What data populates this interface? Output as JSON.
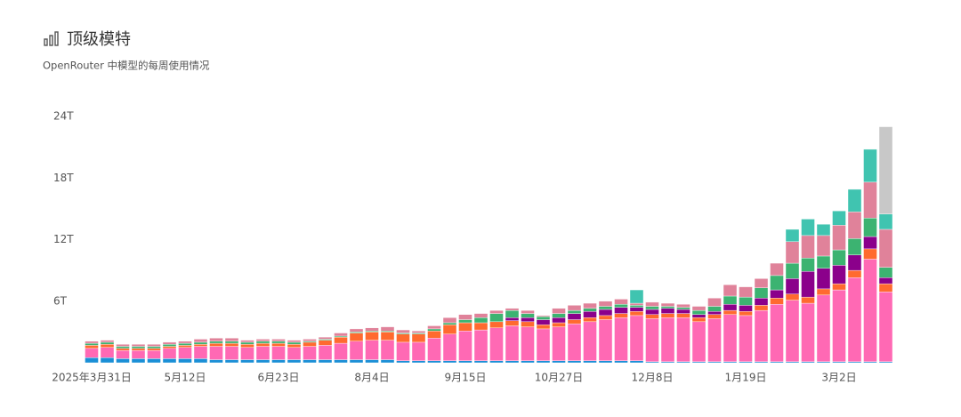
{
  "chart_data": {
    "type": "bar",
    "stacked": true,
    "title": "顶级模特",
    "subtitle": "OpenRouter 中模型的每周使用情况",
    "categories": [
      "2025年3月31日",
      null,
      null,
      null,
      null,
      null,
      "5月12日",
      null,
      null,
      null,
      null,
      null,
      "6月23日",
      null,
      null,
      null,
      null,
      null,
      "8月4日",
      null,
      null,
      null,
      null,
      null,
      "9月15日",
      null,
      null,
      null,
      null,
      null,
      "10月27日",
      null,
      null,
      null,
      null,
      null,
      "12月8日",
      null,
      null,
      null,
      null,
      null,
      "1月19日",
      null,
      null,
      null,
      null,
      null,
      "3月2日",
      null,
      null,
      null
    ],
    "series": [
      {
        "color": "#1a8fd6",
        "values": [
          0.5,
          0.5,
          0.4,
          0.4,
          0.4,
          0.4,
          0.4,
          0.4,
          0.3,
          0.3,
          0.3,
          0.3,
          0.3,
          0.3,
          0.3,
          0.3,
          0.3,
          0.3,
          0.3,
          0.3,
          0.2,
          0.2,
          0.2,
          0.2,
          0.2,
          0.2,
          0.2,
          0.2,
          0.2,
          0.2,
          0.2,
          0.2,
          0.2,
          0.2,
          0.2,
          0.2,
          0.1,
          0.1,
          0.1,
          0.1,
          0.1,
          0.1,
          0.1,
          0.1,
          0.1,
          0.1,
          0.1,
          0.1,
          0.1,
          0.1,
          0.1,
          0.1
        ]
      },
      {
        "color": "#ff69b4",
        "values": [
          0.9,
          1.0,
          0.8,
          0.8,
          0.8,
          1.0,
          1.1,
          1.2,
          1.3,
          1.3,
          1.2,
          1.3,
          1.3,
          1.2,
          1.3,
          1.4,
          1.6,
          1.8,
          1.9,
          1.9,
          1.8,
          1.8,
          2.2,
          2.6,
          2.9,
          3.0,
          3.2,
          3.4,
          3.3,
          3.1,
          3.3,
          3.6,
          3.8,
          4.0,
          4.2,
          4.4,
          4.2,
          4.3,
          4.3,
          3.9,
          4.2,
          4.6,
          4.5,
          5.0,
          5.6,
          6.0,
          5.7,
          6.5,
          7.0,
          8.2,
          10.0,
          6.8
        ]
      },
      {
        "color": "#ff6a2f",
        "values": [
          0.3,
          0.3,
          0.2,
          0.2,
          0.2,
          0.2,
          0.2,
          0.2,
          0.3,
          0.3,
          0.3,
          0.3,
          0.3,
          0.3,
          0.4,
          0.5,
          0.6,
          0.8,
          0.8,
          0.8,
          0.8,
          0.8,
          0.7,
          0.9,
          0.8,
          0.7,
          0.6,
          0.5,
          0.5,
          0.4,
          0.4,
          0.4,
          0.4,
          0.4,
          0.4,
          0.4,
          0.4,
          0.4,
          0.4,
          0.4,
          0.4,
          0.4,
          0.4,
          0.5,
          0.6,
          0.6,
          0.6,
          0.6,
          0.6,
          0.7,
          1.0,
          0.8
        ]
      },
      {
        "color": "#8b008b",
        "values": [
          0,
          0,
          0,
          0,
          0,
          0,
          0,
          0,
          0,
          0,
          0,
          0,
          0,
          0,
          0,
          0,
          0,
          0,
          0,
          0,
          0,
          0,
          0,
          0,
          0,
          0,
          0,
          0.3,
          0.4,
          0.5,
          0.5,
          0.6,
          0.6,
          0.6,
          0.6,
          0.4,
          0.5,
          0.5,
          0.4,
          0.3,
          0.3,
          0.6,
          0.6,
          0.7,
          0.8,
          1.5,
          2.5,
          2.0,
          1.8,
          1.5,
          1.2,
          0.6
        ]
      },
      {
        "color": "#3cb371",
        "values": [
          0.2,
          0.2,
          0.2,
          0.2,
          0.2,
          0.2,
          0.2,
          0.2,
          0.2,
          0.2,
          0.2,
          0.2,
          0.2,
          0.2,
          0.1,
          0.1,
          0.1,
          0.1,
          0.1,
          0.1,
          0.1,
          0.1,
          0.2,
          0.2,
          0.3,
          0.5,
          0.8,
          0.7,
          0.4,
          0.3,
          0.4,
          0.3,
          0.3,
          0.3,
          0.3,
          0.2,
          0.3,
          0.2,
          0.2,
          0.4,
          0.5,
          0.8,
          0.8,
          1.0,
          1.4,
          1.5,
          1.3,
          1.2,
          1.5,
          1.6,
          1.8,
          1.0
        ]
      },
      {
        "color": "#e0829a",
        "values": [
          0.2,
          0.2,
          0.2,
          0.2,
          0.2,
          0.2,
          0.2,
          0.3,
          0.3,
          0.3,
          0.2,
          0.2,
          0.2,
          0.2,
          0.2,
          0.2,
          0.3,
          0.3,
          0.3,
          0.4,
          0.3,
          0.2,
          0.3,
          0.5,
          0.5,
          0.4,
          0.3,
          0.2,
          0.3,
          0.1,
          0.5,
          0.5,
          0.5,
          0.5,
          0.5,
          0.2,
          0.4,
          0.3,
          0.3,
          0.4,
          0.8,
          1.1,
          1.0,
          0.9,
          1.2,
          2.1,
          2.2,
          2.0,
          2.4,
          2.6,
          3.5,
          3.7
        ]
      },
      {
        "color": "#40c4b0",
        "values": [
          0,
          0,
          0,
          0,
          0,
          0,
          0,
          0,
          0,
          0,
          0,
          0,
          0,
          0,
          0,
          0,
          0,
          0,
          0,
          0,
          0,
          0,
          0,
          0,
          0,
          0,
          0,
          0,
          0,
          0,
          0,
          0,
          0,
          0,
          0,
          1.3,
          0,
          0,
          0,
          0,
          0,
          0,
          0,
          0,
          0,
          1.2,
          1.6,
          1.1,
          1.4,
          2.2,
          3.2,
          1.5
        ]
      },
      {
        "color": "#c8c8c8",
        "values": [
          0,
          0,
          0,
          0,
          0,
          0,
          0,
          0,
          0,
          0,
          0,
          0,
          0,
          0,
          0,
          0,
          0,
          0,
          0,
          0,
          0,
          0,
          0,
          0,
          0,
          0,
          0,
          0,
          0,
          0,
          0,
          0,
          0,
          0,
          0,
          0,
          0,
          0,
          0,
          0,
          0,
          0,
          0,
          0,
          0,
          0,
          0,
          0,
          0,
          0,
          0,
          8.5
        ]
      }
    ],
    "ylim": [
      0,
      24
    ],
    "yticks": [
      {
        "value": 6,
        "label": "6T"
      },
      {
        "value": 12,
        "label": "12T"
      },
      {
        "value": 18,
        "label": "18T"
      },
      {
        "value": 24,
        "label": "24T"
      }
    ],
    "grid": false
  }
}
